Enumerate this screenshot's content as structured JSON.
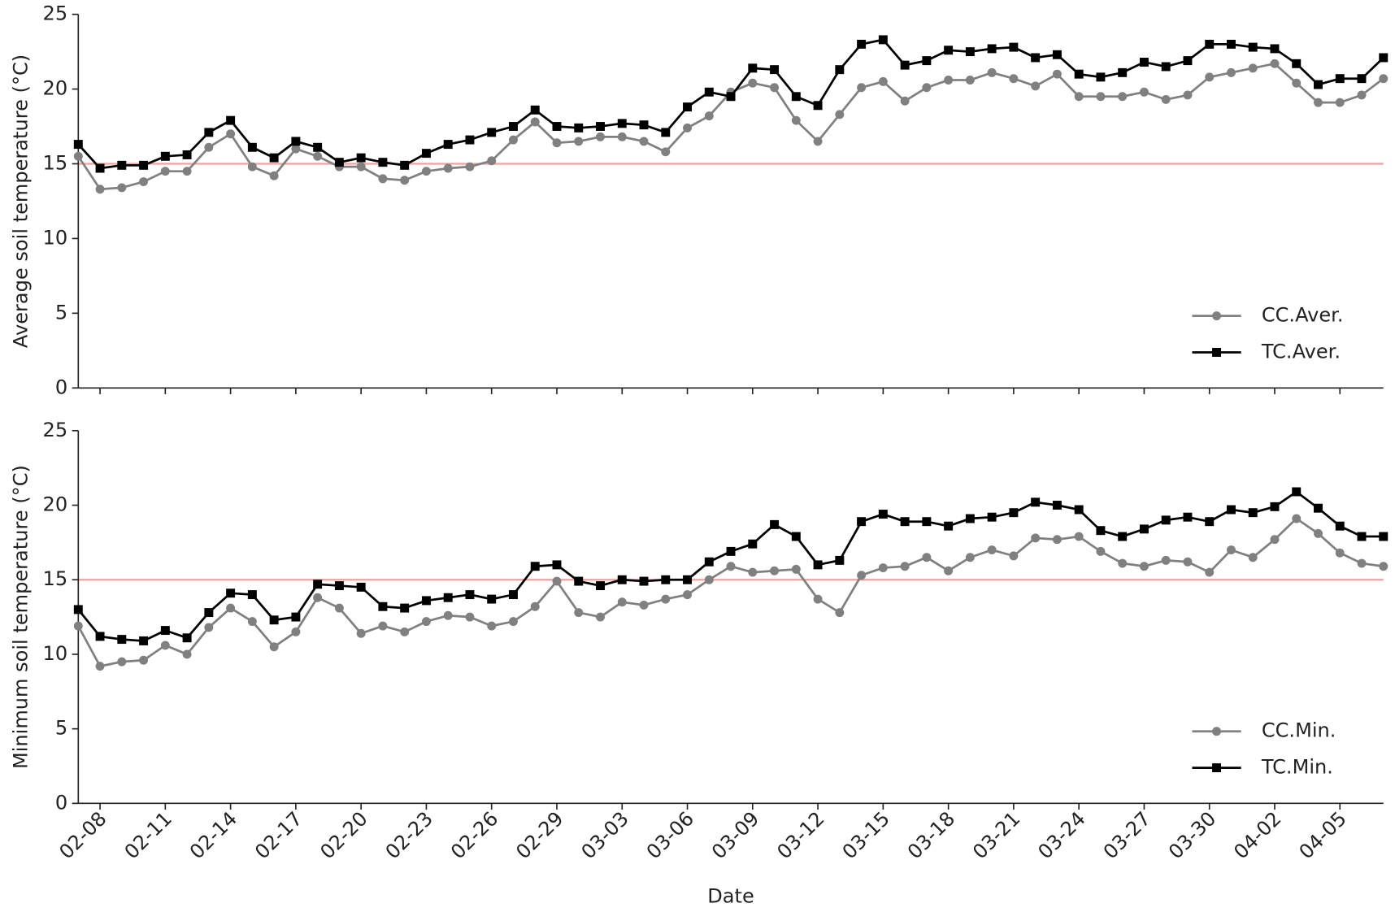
{
  "chart_data": [
    {
      "type": "line",
      "y_label": "Average soil temperature (°C)",
      "ylim": [
        0,
        25
      ],
      "yticks": [
        0,
        5,
        10,
        15,
        20,
        25
      ],
      "reference_line": 15,
      "reference_color": "#f4a0a0",
      "legend": "lower right",
      "series": [
        {
          "name": "CC.Aver.",
          "color": "#808080",
          "marker": "circle",
          "values": [
            15.5,
            13.3,
            13.4,
            13.8,
            14.5,
            14.5,
            16.1,
            17.0,
            14.8,
            14.2,
            16.0,
            15.5,
            14.8,
            14.8,
            14.0,
            13.9,
            14.5,
            14.7,
            14.8,
            15.2,
            16.6,
            17.8,
            16.4,
            16.5,
            16.8,
            16.8,
            16.5,
            15.8,
            17.4,
            18.2,
            19.8,
            20.4,
            20.1,
            17.9,
            16.5,
            18.3,
            20.1,
            20.5,
            19.2,
            20.1,
            20.6,
            20.6,
            21.1,
            20.7,
            20.2,
            21.0,
            19.5,
            19.5,
            19.5,
            19.8,
            19.3,
            19.6,
            20.8,
            21.1,
            21.4,
            21.7,
            20.4,
            19.1,
            19.1,
            19.6,
            20.7
          ]
        },
        {
          "name": "TC.Aver.",
          "color": "#000000",
          "marker": "square",
          "values": [
            16.3,
            14.7,
            14.9,
            14.9,
            15.5,
            15.6,
            17.1,
            17.9,
            16.1,
            15.4,
            16.5,
            16.1,
            15.1,
            15.4,
            15.1,
            14.9,
            15.7,
            16.3,
            16.6,
            17.1,
            17.5,
            18.6,
            17.5,
            17.4,
            17.5,
            17.7,
            17.6,
            17.1,
            18.8,
            19.8,
            19.5,
            21.4,
            21.3,
            19.5,
            18.9,
            21.3,
            23.0,
            23.3,
            21.6,
            21.9,
            22.6,
            22.5,
            22.7,
            22.8,
            22.1,
            22.3,
            21.0,
            20.8,
            21.1,
            21.8,
            21.5,
            21.9,
            23.0,
            23.0,
            22.8,
            22.7,
            21.7,
            20.3,
            20.7,
            20.7,
            22.1
          ]
        }
      ]
    },
    {
      "type": "line",
      "x_label": "Date",
      "y_label": "Minimum soil temperature (°C)",
      "categories": [
        null,
        "02-08",
        null,
        null,
        "02-11",
        null,
        null,
        "02-14",
        null,
        null,
        "02-17",
        null,
        null,
        "02-20",
        null,
        null,
        "02-23",
        null,
        null,
        "02-26",
        null,
        null,
        "02-29",
        null,
        null,
        "03-03",
        null,
        null,
        "03-06",
        null,
        null,
        "03-09",
        null,
        null,
        "03-12",
        null,
        null,
        "03-15",
        null,
        null,
        "03-18",
        null,
        null,
        "03-21",
        null,
        null,
        "03-24",
        null,
        null,
        "03-27",
        null,
        null,
        "03-30",
        null,
        null,
        "04-02",
        null,
        null,
        "04-05",
        null,
        null
      ],
      "ylim": [
        0,
        25
      ],
      "yticks": [
        0,
        5,
        10,
        15,
        20,
        25
      ],
      "reference_line": 15,
      "reference_color": "#f4a0a0",
      "legend": "lower right",
      "series": [
        {
          "name": "CC.Min.",
          "color": "#808080",
          "marker": "circle",
          "values": [
            11.9,
            9.2,
            9.5,
            9.6,
            10.6,
            10.0,
            11.8,
            13.1,
            12.2,
            10.5,
            11.5,
            13.8,
            13.1,
            11.4,
            11.9,
            11.5,
            12.2,
            12.6,
            12.5,
            11.9,
            12.2,
            13.2,
            14.9,
            12.8,
            12.5,
            13.5,
            13.3,
            13.7,
            14.0,
            15.0,
            15.9,
            15.5,
            15.6,
            15.7,
            13.7,
            12.8,
            15.3,
            15.8,
            15.9,
            16.5,
            15.6,
            16.5,
            17.0,
            16.6,
            17.8,
            17.7,
            17.9,
            16.9,
            16.1,
            15.9,
            16.3,
            16.2,
            15.5,
            17.0,
            16.5,
            17.7,
            19.1,
            18.1,
            16.8,
            16.1,
            15.9
          ]
        },
        {
          "name": "TC.Min.",
          "color": "#000000",
          "marker": "square",
          "values": [
            13.0,
            11.2,
            11.0,
            10.9,
            11.6,
            11.1,
            12.8,
            14.1,
            14.0,
            12.3,
            12.5,
            14.7,
            14.6,
            14.5,
            13.2,
            13.1,
            13.6,
            13.8,
            14.0,
            13.7,
            14.0,
            15.9,
            16.0,
            14.9,
            14.6,
            15.0,
            14.9,
            15.0,
            15.0,
            16.2,
            16.9,
            17.4,
            18.7,
            17.9,
            16.0,
            16.3,
            18.9,
            19.4,
            18.9,
            18.9,
            18.6,
            19.1,
            19.2,
            19.5,
            20.2,
            20.0,
            19.7,
            18.3,
            17.9,
            18.4,
            19.0,
            19.2,
            18.9,
            19.7,
            19.5,
            19.9,
            20.9,
            19.8,
            18.6,
            17.9,
            17.9
          ]
        }
      ]
    }
  ]
}
